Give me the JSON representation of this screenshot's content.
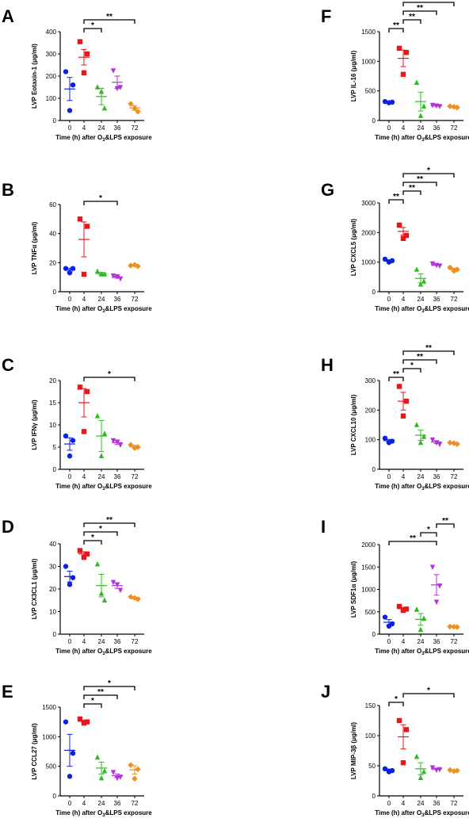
{
  "figure": {
    "xlabel_prefix": "Time (h) after O",
    "xlabel_sub": "3",
    "xlabel_suffix": "&LPS exposure"
  },
  "colors": {
    "0": "#0a21e0",
    "4": "#e8161b",
    "24": "#2dbb1f",
    "36": "#b133d8",
    "72": "#f28e1c"
  },
  "chart_data": [
    {
      "type": "scatter",
      "letter": "A",
      "ylabel": "LVP Eotaxin-1 (μg/ml)",
      "categories": [
        "0",
        "4",
        "24",
        "36",
        "72"
      ],
      "ylim": [
        0,
        400
      ],
      "yticks": [
        "0",
        "100",
        "200",
        "300",
        "400"
      ],
      "series": [
        {
          "x": "0",
          "points": [
            220,
            160,
            45
          ],
          "mean": 142,
          "sem": 52
        },
        {
          "x": "4",
          "points": [
            355,
            300,
            215
          ],
          "mean": 285,
          "sem": 35
        },
        {
          "x": "24",
          "points": [
            150,
            55,
            130
          ],
          "mean": 108,
          "sem": 37
        },
        {
          "x": "36",
          "points": [
            225,
            150,
            145
          ],
          "mean": 172,
          "sem": 28
        },
        {
          "x": "72",
          "points": [
            75,
            40,
            55
          ],
          "mean": 57,
          "sem": 10
        }
      ],
      "significance": [
        {
          "from": "4",
          "to": "24",
          "label": "*"
        },
        {
          "from": "4",
          "to": "72",
          "label": "**"
        }
      ]
    },
    {
      "type": "scatter",
      "letter": "B",
      "ylabel": "LVP TNFα (μg/ml)",
      "categories": [
        "0",
        "4",
        "24",
        "36",
        "72"
      ],
      "ylim": [
        0,
        60
      ],
      "yticks": [
        "0",
        "20",
        "40",
        "60"
      ],
      "series": [
        {
          "x": "0",
          "points": [
            16,
            16,
            13
          ],
          "mean": 15,
          "sem": 1.2
        },
        {
          "x": "4",
          "points": [
            50,
            45,
            12
          ],
          "mean": 36,
          "sem": 12
        },
        {
          "x": "24",
          "points": [
            14,
            12,
            12
          ],
          "mean": 12.5,
          "sem": 0.8
        },
        {
          "x": "36",
          "points": [
            11,
            9,
            10.5
          ],
          "mean": 10,
          "sem": 0.7
        },
        {
          "x": "72",
          "points": [
            18,
            17.5,
            18.5
          ],
          "mean": 18,
          "sem": 0.4
        }
      ],
      "significance": [
        {
          "from": "4",
          "to": "36",
          "label": "*"
        }
      ]
    },
    {
      "type": "scatter",
      "letter": "C",
      "ylabel": "LVP IFNγ (μg/ml)",
      "categories": [
        "0",
        "4",
        "24",
        "36",
        "72"
      ],
      "ylim": [
        0,
        20
      ],
      "yticks": [
        "0",
        "5",
        "10",
        "15",
        "20"
      ],
      "series": [
        {
          "x": "0",
          "points": [
            7.5,
            6.5,
            3
          ],
          "mean": 5.7,
          "sem": 1.4
        },
        {
          "x": "4",
          "points": [
            18.5,
            17.5,
            8.5
          ],
          "mean": 15,
          "sem": 3.2
        },
        {
          "x": "24",
          "points": [
            12,
            8,
            3
          ],
          "mean": 7.5,
          "sem": 3.5
        },
        {
          "x": "36",
          "points": [
            6.5,
            5.5,
            6.2
          ],
          "mean": 6,
          "sem": 0.4
        },
        {
          "x": "72",
          "points": [
            5.5,
            5,
            4.8
          ],
          "mean": 5.1,
          "sem": 0.3
        }
      ],
      "significance": [
        {
          "from": "4",
          "to": "72",
          "label": "*"
        }
      ]
    },
    {
      "type": "scatter",
      "letter": "D",
      "ylabel": "LVP CX3CL1 (μg/ml)",
      "categories": [
        "0",
        "4",
        "24",
        "36",
        "72"
      ],
      "ylim": [
        0,
        40
      ],
      "yticks": [
        "0",
        "10",
        "20",
        "30",
        "40"
      ],
      "series": [
        {
          "x": "0",
          "points": [
            30,
            25,
            22
          ],
          "mean": 25.5,
          "sem": 2.4
        },
        {
          "x": "4",
          "points": [
            37,
            35.5,
            34
          ],
          "mean": 35.5,
          "sem": 1.0
        },
        {
          "x": "24",
          "points": [
            31,
            15,
            18
          ],
          "mean": 21.5,
          "sem": 5
        },
        {
          "x": "36",
          "points": [
            23,
            19.5,
            22
          ],
          "mean": 21.5,
          "sem": 1.2
        },
        {
          "x": "72",
          "points": [
            16.5,
            15.5,
            16
          ],
          "mean": 16,
          "sem": 0.3
        }
      ],
      "significance": [
        {
          "from": "4",
          "to": "24",
          "label": "*"
        },
        {
          "from": "4",
          "to": "36",
          "label": "*"
        },
        {
          "from": "4",
          "to": "72",
          "label": "**"
        }
      ]
    },
    {
      "type": "scatter",
      "letter": "E",
      "ylabel": "LVP CCL27 (μg/ml)",
      "categories": [
        "0",
        "4",
        "24",
        "36",
        "72"
      ],
      "ylim": [
        0,
        1500
      ],
      "yticks": [
        "0",
        "500",
        "1000",
        "1500"
      ],
      "series": [
        {
          "x": "0",
          "points": [
            1250,
            720,
            330
          ],
          "mean": 770,
          "sem": 270
        },
        {
          "x": "4",
          "points": [
            1300,
            1250,
            1230
          ],
          "mean": 1260,
          "sem": 22
        },
        {
          "x": "24",
          "points": [
            650,
            420,
            300
          ],
          "mean": 470,
          "sem": 100
        },
        {
          "x": "36",
          "points": [
            400,
            320,
            300
          ],
          "mean": 340,
          "sem": 30
        },
        {
          "x": "72",
          "points": [
            520,
            450,
            290
          ],
          "mean": 440,
          "sem": 70
        }
      ],
      "significance": [
        {
          "from": "4",
          "to": "24",
          "label": "*"
        },
        {
          "from": "4",
          "to": "36",
          "label": "**"
        },
        {
          "from": "4",
          "to": "72",
          "label": "*"
        }
      ]
    },
    {
      "type": "scatter",
      "letter": "F",
      "ylabel": "LVP IL-16 (μg/ml)",
      "categories": [
        "0",
        "4",
        "24",
        "36",
        "72"
      ],
      "ylim": [
        0,
        1500
      ],
      "yticks": [
        "0",
        "500",
        "1000",
        "1500"
      ],
      "series": [
        {
          "x": "0",
          "points": [
            320,
            310,
            300
          ],
          "mean": 310,
          "sem": 6
        },
        {
          "x": "4",
          "points": [
            1220,
            1150,
            780
          ],
          "mean": 1050,
          "sem": 140
        },
        {
          "x": "24",
          "points": [
            640,
            240,
            80
          ],
          "mean": 320,
          "sem": 160
        },
        {
          "x": "36",
          "points": [
            260,
            240,
            250
          ],
          "mean": 250,
          "sem": 6
        },
        {
          "x": "72",
          "points": [
            240,
            220,
            230
          ],
          "mean": 230,
          "sem": 6
        }
      ],
      "significance": [
        {
          "from": "0",
          "to": "4",
          "label": "**"
        },
        {
          "from": "4",
          "to": "24",
          "label": "**"
        },
        {
          "from": "4",
          "to": "36",
          "label": "**"
        },
        {
          "from": "4",
          "to": "72",
          "label": "**"
        }
      ]
    },
    {
      "type": "scatter",
      "letter": "G",
      "ylabel": "LVP CXCL5 (μg/ml)",
      "categories": [
        "0",
        "4",
        "24",
        "36",
        "72"
      ],
      "ylim": [
        0,
        3000
      ],
      "yticks": [
        "0",
        "1000",
        "2000",
        "3000"
      ],
      "series": [
        {
          "x": "0",
          "points": [
            1100,
            1050,
            1000
          ],
          "mean": 1050,
          "sem": 30
        },
        {
          "x": "4",
          "points": [
            2250,
            1900,
            1800
          ],
          "mean": 2040,
          "sem": 130
        },
        {
          "x": "24",
          "points": [
            750,
            350,
            250
          ],
          "mean": 450,
          "sem": 150
        },
        {
          "x": "36",
          "points": [
            950,
            880,
            900
          ],
          "mean": 910,
          "sem": 20
        },
        {
          "x": "72",
          "points": [
            820,
            750,
            700
          ],
          "mean": 760,
          "sem": 35
        }
      ],
      "significance": [
        {
          "from": "0",
          "to": "4",
          "label": "**"
        },
        {
          "from": "4",
          "to": "24",
          "label": "**"
        },
        {
          "from": "4",
          "to": "36",
          "label": "**"
        },
        {
          "from": "4",
          "to": "72",
          "label": "*"
        }
      ]
    },
    {
      "type": "scatter",
      "letter": "H",
      "ylabel": "LVP CXCL10 (μg/ml)",
      "categories": [
        "0",
        "4",
        "24",
        "36",
        "72"
      ],
      "ylim": [
        0,
        300
      ],
      "yticks": [
        "0",
        "100",
        "200",
        "300"
      ],
      "series": [
        {
          "x": "0",
          "points": [
            105,
            95,
            90
          ],
          "mean": 97,
          "sem": 4
        },
        {
          "x": "4",
          "points": [
            280,
            230,
            180
          ],
          "mean": 230,
          "sem": 30
        },
        {
          "x": "24",
          "points": [
            150,
            110,
            90
          ],
          "mean": 115,
          "sem": 17
        },
        {
          "x": "36",
          "points": [
            100,
            85,
            90
          ],
          "mean": 92,
          "sem": 5
        },
        {
          "x": "72",
          "points": [
            90,
            85,
            88
          ],
          "mean": 88,
          "sem": 2
        }
      ],
      "significance": [
        {
          "from": "0",
          "to": "4",
          "label": "**"
        },
        {
          "from": "4",
          "to": "24",
          "label": "*"
        },
        {
          "from": "4",
          "to": "36",
          "label": "**"
        },
        {
          "from": "4",
          "to": "72",
          "label": "**"
        }
      ]
    },
    {
      "type": "scatter",
      "letter": "I",
      "ylabel": "LVP SDF1α (μg/ml)",
      "categories": [
        "0",
        "4",
        "24",
        "36",
        "72"
      ],
      "ylim": [
        0,
        2000
      ],
      "yticks": [
        "0",
        "500",
        "1000",
        "1500",
        "2000"
      ],
      "series": [
        {
          "x": "0",
          "points": [
            380,
            230,
            180
          ],
          "mean": 265,
          "sem": 60
        },
        {
          "x": "4",
          "points": [
            620,
            560,
            530
          ],
          "mean": 570,
          "sem": 25
        },
        {
          "x": "24",
          "points": [
            550,
            350,
            100
          ],
          "mean": 330,
          "sem": 130
        },
        {
          "x": "36",
          "points": [
            1500,
            1080,
            720
          ],
          "mean": 1100,
          "sem": 230
        },
        {
          "x": "72",
          "points": [
            170,
            160,
            165
          ],
          "mean": 165,
          "sem": 3
        }
      ],
      "significance": [
        {
          "from": "0",
          "to": "36",
          "label": "**"
        },
        {
          "from": "24",
          "to": "36",
          "label": "*"
        },
        {
          "from": "36",
          "to": "72",
          "label": "**"
        }
      ]
    },
    {
      "type": "scatter",
      "letter": "J",
      "ylabel": "LVP MIP-3β (μg/ml)",
      "categories": [
        "0",
        "4",
        "24",
        "36",
        "72"
      ],
      "ylim": [
        0,
        150
      ],
      "yticks": [
        "0",
        "50",
        "100",
        "150"
      ],
      "series": [
        {
          "x": "0",
          "points": [
            45,
            42,
            40
          ],
          "mean": 43,
          "sem": 1.5
        },
        {
          "x": "4",
          "points": [
            125,
            110,
            55
          ],
          "mean": 98,
          "sem": 20
        },
        {
          "x": "24",
          "points": [
            65,
            40,
            30
          ],
          "mean": 45,
          "sem": 10
        },
        {
          "x": "36",
          "points": [
            47,
            44,
            43
          ],
          "mean": 45,
          "sem": 1.2
        },
        {
          "x": "72",
          "points": [
            43,
            42,
            41
          ],
          "mean": 42,
          "sem": 0.6
        }
      ],
      "significance": [
        {
          "from": "0",
          "to": "4",
          "label": "*"
        },
        {
          "from": "4",
          "to": "72",
          "label": "*"
        }
      ]
    }
  ]
}
